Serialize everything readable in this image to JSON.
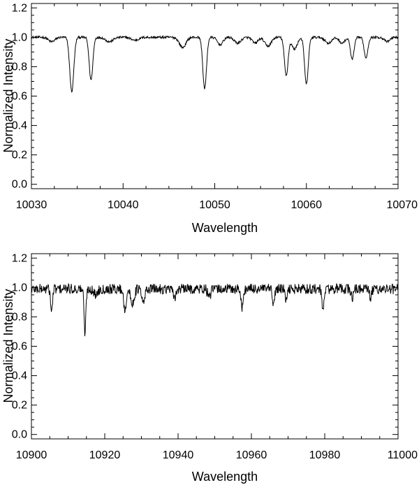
{
  "chart_data": [
    {
      "type": "line",
      "xlabel": "Wavelength",
      "ylabel": "Normalized Intensity",
      "xlim": [
        10030,
        10070
      ],
      "ylim": [
        -0.03,
        1.23
      ],
      "xticks": [
        "10030",
        "10040",
        "10050",
        "10060",
        "10070"
      ],
      "yticks": [
        "0.0",
        "0.2",
        "0.4",
        "0.6",
        "0.8",
        "1.0",
        "1.2"
      ],
      "grid": false,
      "series": [
        {
          "color": "#000000",
          "continuum": 1.0,
          "noise_amplitude": 0.008,
          "absorption_lines": [
            {
              "center": 10032.2,
              "depth": 0.03,
              "width": 0.35
            },
            {
              "center": 10034.4,
              "depth": 0.37,
              "width": 0.22
            },
            {
              "center": 10036.5,
              "depth": 0.29,
              "width": 0.2
            },
            {
              "center": 10038.5,
              "depth": 0.03,
              "width": 0.4
            },
            {
              "center": 10041.3,
              "depth": 0.02,
              "width": 0.4
            },
            {
              "center": 10046.5,
              "depth": 0.07,
              "width": 0.35
            },
            {
              "center": 10048.9,
              "depth": 0.35,
              "width": 0.2
            },
            {
              "center": 10050.6,
              "depth": 0.05,
              "width": 0.3
            },
            {
              "center": 10052.5,
              "depth": 0.04,
              "width": 0.35
            },
            {
              "center": 10054.4,
              "depth": 0.04,
              "width": 0.3
            },
            {
              "center": 10055.8,
              "depth": 0.06,
              "width": 0.35
            },
            {
              "center": 10057.8,
              "depth": 0.26,
              "width": 0.2
            },
            {
              "center": 10058.7,
              "depth": 0.08,
              "width": 0.3
            },
            {
              "center": 10060.0,
              "depth": 0.32,
              "width": 0.2
            },
            {
              "center": 10062.4,
              "depth": 0.04,
              "width": 0.35
            },
            {
              "center": 10063.9,
              "depth": 0.04,
              "width": 0.3
            },
            {
              "center": 10065.0,
              "depth": 0.15,
              "width": 0.2
            },
            {
              "center": 10066.5,
              "depth": 0.14,
              "width": 0.2
            },
            {
              "center": 10068.8,
              "depth": 0.03,
              "width": 0.3
            }
          ]
        }
      ]
    },
    {
      "type": "line",
      "xlabel": "Wavelength",
      "ylabel": "Normalized Intensity",
      "xlim": [
        10900,
        11000
      ],
      "ylim": [
        -0.03,
        1.23
      ],
      "xticks": [
        "10900",
        "10920",
        "10940",
        "10960",
        "10980",
        "11000"
      ],
      "yticks": [
        "0.0",
        "0.2",
        "0.4",
        "0.6",
        "0.8",
        "1.0",
        "1.2"
      ],
      "grid": false,
      "series": [
        {
          "color": "#000000",
          "continuum": 0.99,
          "noise_amplitude": 0.035,
          "absorption_lines": [
            {
              "center": 10905.5,
              "depth": 0.16,
              "width": 0.25
            },
            {
              "center": 10914.6,
              "depth": 0.3,
              "width": 0.25
            },
            {
              "center": 10917.5,
              "depth": 0.04,
              "width": 0.5
            },
            {
              "center": 10925.5,
              "depth": 0.14,
              "width": 0.35
            },
            {
              "center": 10927.5,
              "depth": 0.1,
              "width": 0.5
            },
            {
              "center": 10930.5,
              "depth": 0.1,
              "width": 0.4
            },
            {
              "center": 10939.0,
              "depth": 0.06,
              "width": 0.4
            },
            {
              "center": 10948.5,
              "depth": 0.06,
              "width": 0.4
            },
            {
              "center": 10957.5,
              "depth": 0.13,
              "width": 0.3
            },
            {
              "center": 10966.0,
              "depth": 0.11,
              "width": 0.3
            },
            {
              "center": 10969.5,
              "depth": 0.08,
              "width": 0.3
            },
            {
              "center": 10979.5,
              "depth": 0.14,
              "width": 0.3
            },
            {
              "center": 10987.5,
              "depth": 0.06,
              "width": 0.3
            },
            {
              "center": 10992.5,
              "depth": 0.06,
              "width": 0.3
            }
          ]
        }
      ]
    }
  ]
}
